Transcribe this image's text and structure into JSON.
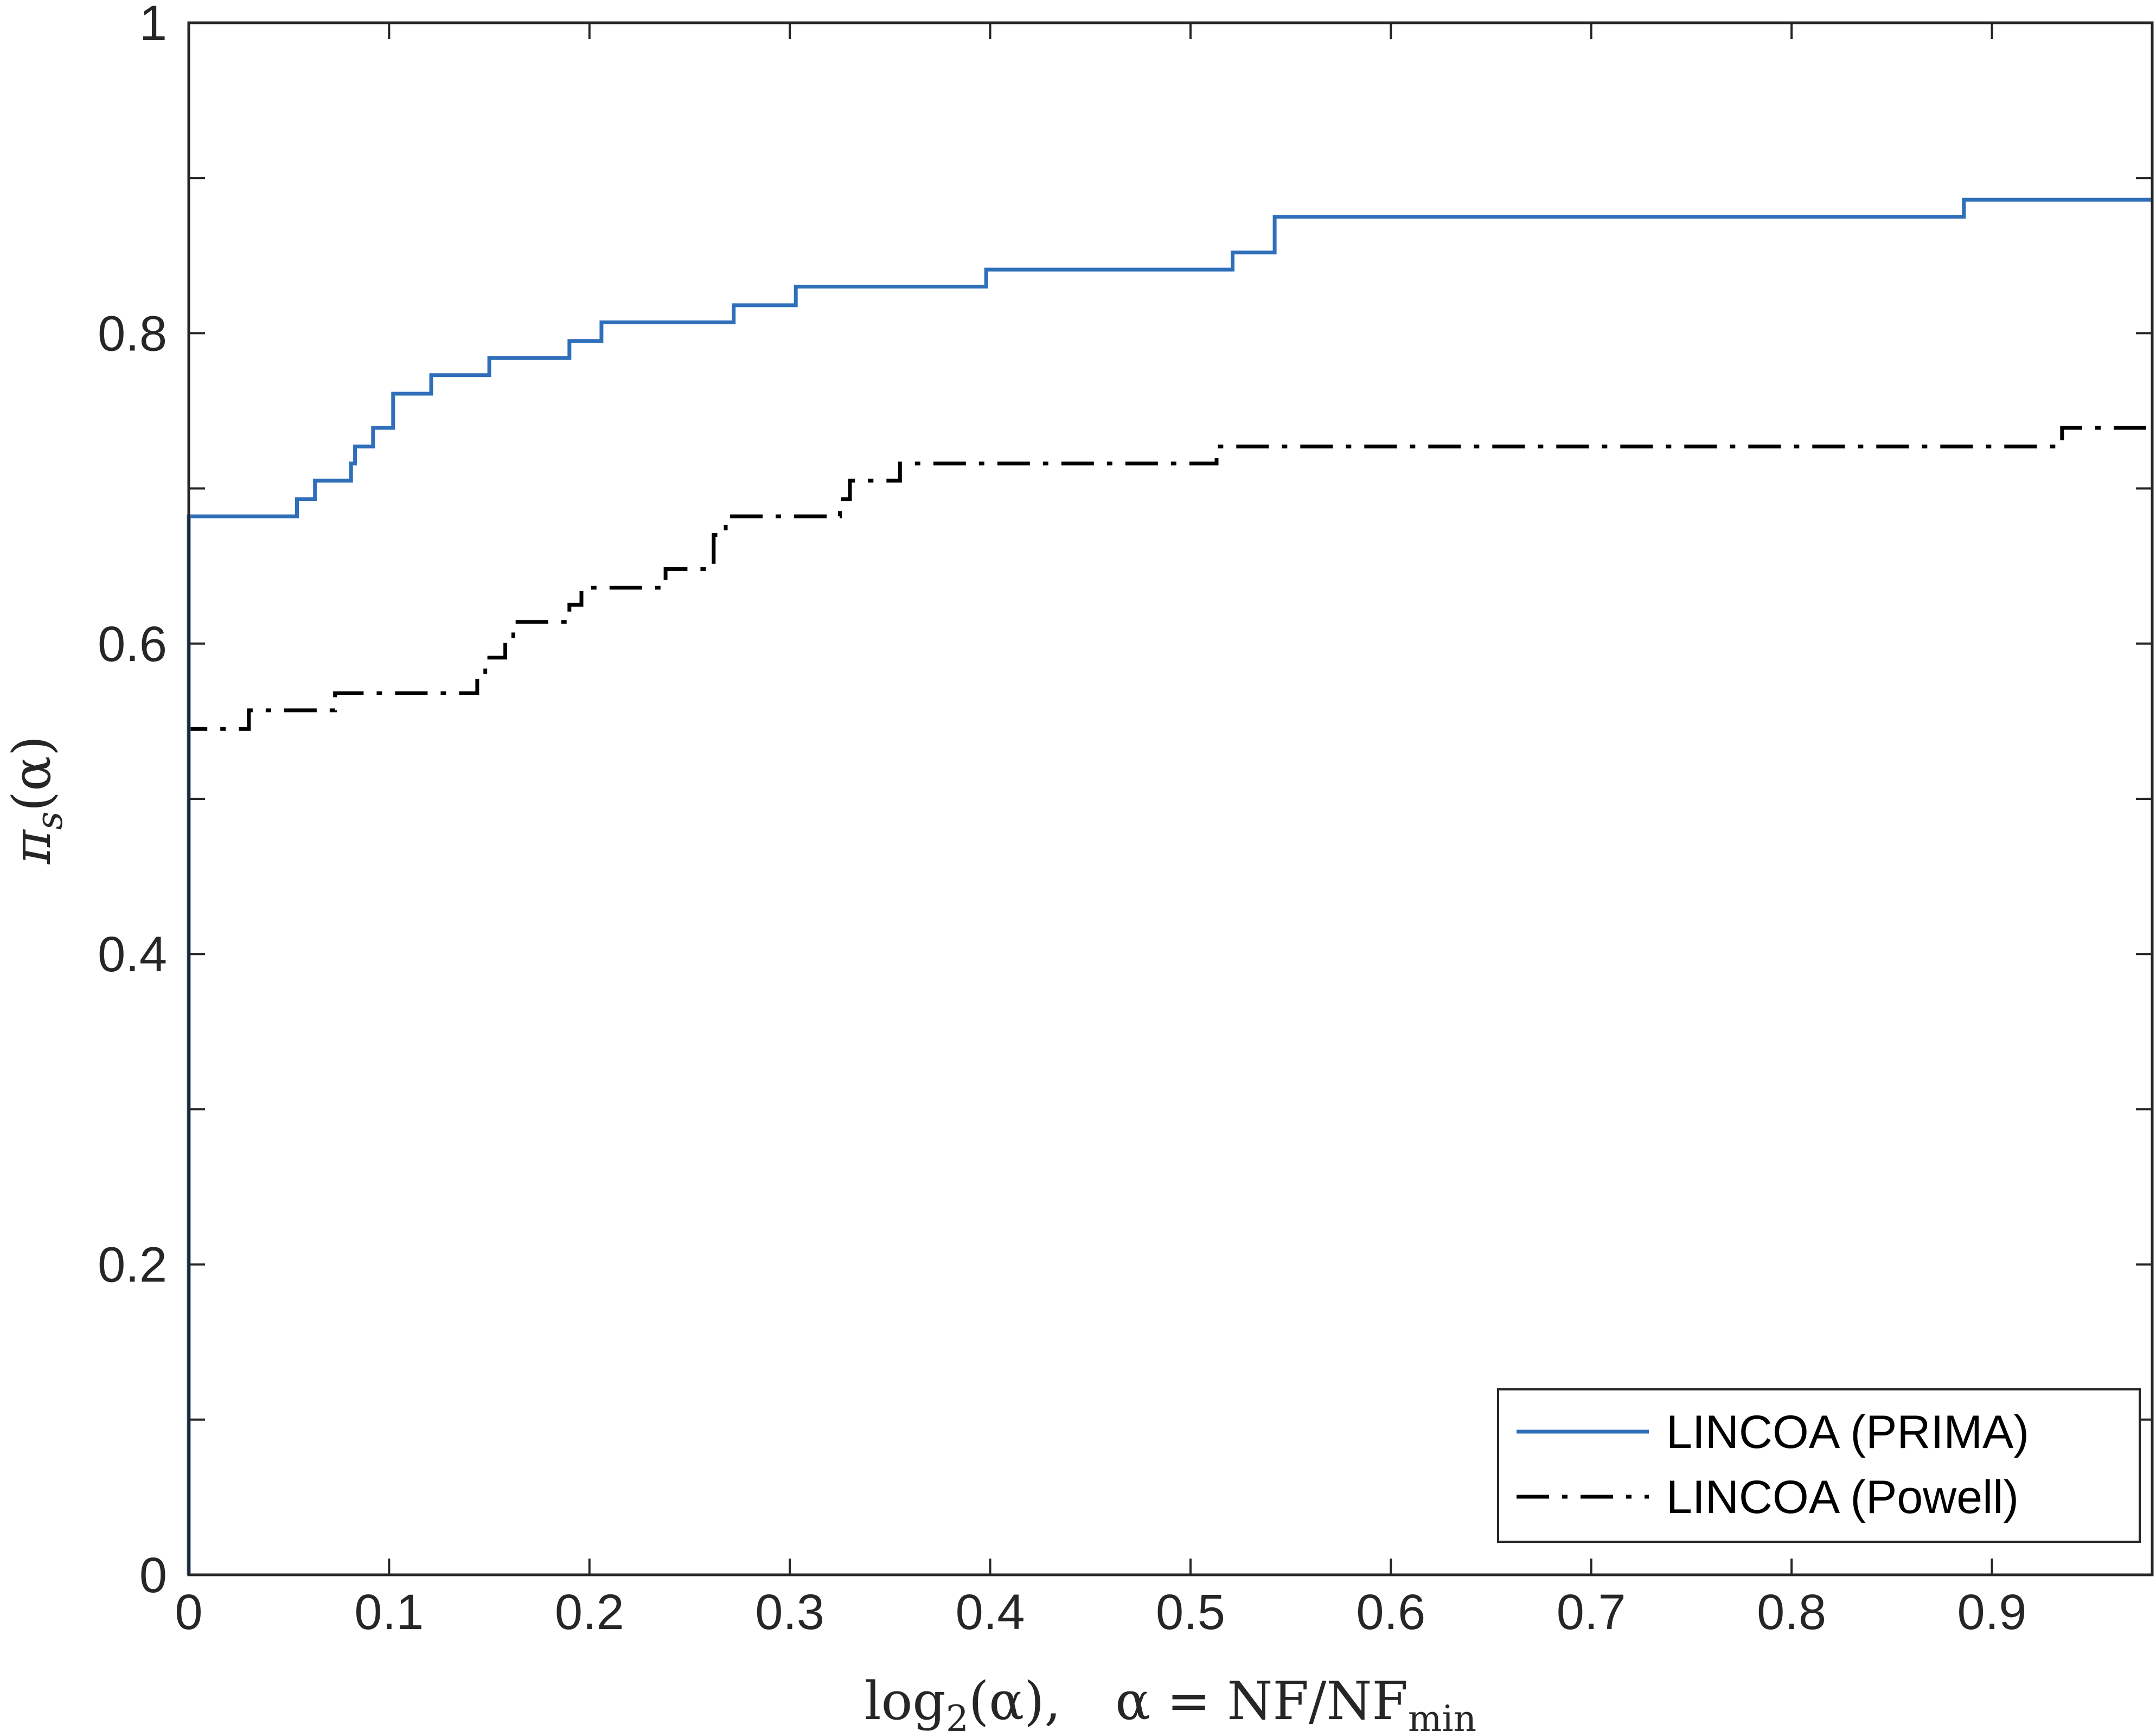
{
  "chart_data": {
    "type": "line",
    "title": "",
    "xlabel": {
      "prefix": "log",
      "base": "2",
      "arg": "(α),",
      "alpha_def": "α = NF/NF",
      "sub": "min"
    },
    "ylabel": {
      "symbol": "π",
      "sub": "s",
      "arg": "(α)"
    },
    "xlim": [
      0,
      0.98
    ],
    "ylim": [
      0,
      1
    ],
    "x_ticks": [
      0,
      0.1,
      0.2,
      0.3,
      0.4,
      0.5,
      0.6,
      0.7,
      0.8,
      0.9
    ],
    "x_tick_labels": [
      "0",
      "0.1",
      "0.2",
      "0.3",
      "0.4",
      "0.5",
      "0.6",
      "0.7",
      "0.8",
      "0.9"
    ],
    "y_ticks": [
      0,
      0.1,
      0.2,
      0.3,
      0.4,
      0.5,
      0.6,
      0.7,
      0.8,
      0.9,
      1
    ],
    "y_tick_labels": [
      "0",
      "",
      "0.2",
      "",
      "0.4",
      "",
      "0.6",
      "",
      "0.8",
      "",
      "1"
    ],
    "grid": false,
    "legend_position": "bottom-right",
    "series": [
      {
        "name": "LINCOA (PRIMA)",
        "color": "#2f6fba",
        "style": "solid",
        "x": [
          0,
          0,
          0.054,
          0.063,
          0.081,
          0.083,
          0.092,
          0.102,
          0.121,
          0.15,
          0.19,
          0.206,
          0.272,
          0.303,
          0.398,
          0.521,
          0.542,
          0.886,
          0.98
        ],
        "y": [
          0,
          0.682,
          0.693,
          0.705,
          0.716,
          0.727,
          0.739,
          0.761,
          0.773,
          0.784,
          0.795,
          0.807,
          0.818,
          0.83,
          0.841,
          0.852,
          0.875,
          0.886,
          0.886
        ]
      },
      {
        "name": "LINCOA (Powell)",
        "color": "#000000",
        "style": "dash-dot",
        "x": [
          0,
          0,
          0.03,
          0.073,
          0.144,
          0.148,
          0.158,
          0.162,
          0.19,
          0.196,
          0.21,
          0.238,
          0.262,
          0.268,
          0.325,
          0.33,
          0.355,
          0.513,
          0.935,
          0.98
        ],
        "y": [
          0,
          0.545,
          0.557,
          0.568,
          0.579,
          0.591,
          0.602,
          0.614,
          0.625,
          0.636,
          0.636,
          0.648,
          0.67,
          0.682,
          0.693,
          0.705,
          0.716,
          0.727,
          0.739,
          0.739
        ]
      }
    ]
  }
}
